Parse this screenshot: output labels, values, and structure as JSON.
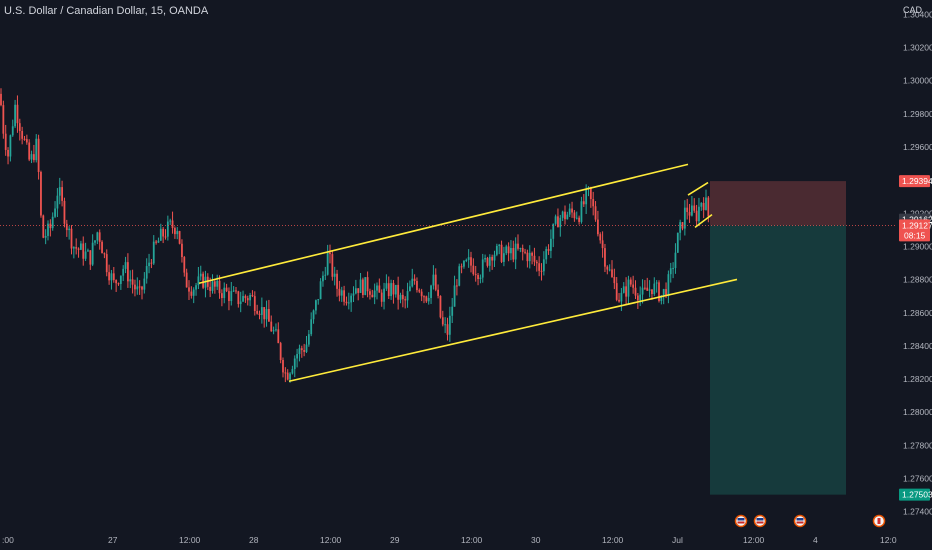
{
  "header": {
    "symbol_title": "U.S. Dollar / Canadian Dollar, 15, OANDA",
    "currency": "CAD"
  },
  "colors": {
    "background": "#131722",
    "up": "#26a69a",
    "down": "#ef5350",
    "channel": "#ffeb3b",
    "stop_zone": "#4a2a31",
    "target_zone": "#163a3c",
    "grid": "#1e222d"
  },
  "chart_data": {
    "type": "candlestick",
    "ylim": [
      1.2732,
      1.3045
    ],
    "y_ticks": [
      "1.30400",
      "1.30200",
      "1.30000",
      "1.29800",
      "1.29600",
      "1.29200",
      "1.29000",
      "1.28800",
      "1.28600",
      "1.28400",
      "1.28200",
      "1.28000",
      "1.27800",
      "1.27600",
      "1.27400"
    ],
    "x_ticks": [
      "12:00",
      "27",
      "12:00",
      "28",
      "12:00",
      "29",
      "12:00",
      "30",
      "12:00",
      "Jul",
      "12:00",
      "4",
      "12:0"
    ],
    "x_first_tick_partial": ":00",
    "series_anchor_points": [
      [
        0,
        1.2992
      ],
      [
        3,
        1.2972
      ],
      [
        8,
        1.2955
      ],
      [
        15,
        1.2985
      ],
      [
        30,
        1.295
      ],
      [
        37,
        1.2962
      ],
      [
        42,
        1.2905
      ],
      [
        50,
        1.291
      ],
      [
        58,
        1.2935
      ],
      [
        68,
        1.291
      ],
      [
        74,
        1.29
      ],
      [
        82,
        1.2897
      ],
      [
        90,
        1.2893
      ],
      [
        98,
        1.291
      ],
      [
        106,
        1.289
      ],
      [
        114,
        1.2877
      ],
      [
        124,
        1.2888
      ],
      [
        132,
        1.2878
      ],
      [
        140,
        1.287
      ],
      [
        150,
        1.2893
      ],
      [
        160,
        1.2905
      ],
      [
        170,
        1.2912
      ],
      [
        178,
        1.2912
      ],
      [
        184,
        1.288
      ],
      [
        192,
        1.2875
      ],
      [
        204,
        1.288
      ],
      [
        214,
        1.2875
      ],
      [
        226,
        1.2872
      ],
      [
        238,
        1.2868
      ],
      [
        250,
        1.287
      ],
      [
        264,
        1.286
      ],
      [
        276,
        1.2845
      ],
      [
        286,
        1.2822
      ],
      [
        296,
        1.2835
      ],
      [
        306,
        1.284
      ],
      [
        314,
        1.286
      ],
      [
        322,
        1.288
      ],
      [
        328,
        1.2895
      ],
      [
        336,
        1.2876
      ],
      [
        346,
        1.287
      ],
      [
        356,
        1.2876
      ],
      [
        368,
        1.2876
      ],
      [
        380,
        1.287
      ],
      [
        392,
        1.2875
      ],
      [
        404,
        1.2865
      ],
      [
        414,
        1.288
      ],
      [
        426,
        1.287
      ],
      [
        434,
        1.288
      ],
      [
        442,
        1.2852
      ],
      [
        448,
        1.2848
      ],
      [
        456,
        1.288
      ],
      [
        468,
        1.289
      ],
      [
        480,
        1.2885
      ],
      [
        492,
        1.2897
      ],
      [
        504,
        1.2895
      ],
      [
        516,
        1.2897
      ],
      [
        528,
        1.2895
      ],
      [
        540,
        1.2887
      ],
      [
        548,
        1.29
      ],
      [
        558,
        1.2917
      ],
      [
        570,
        1.292
      ],
      [
        580,
        1.292
      ],
      [
        588,
        1.2932
      ],
      [
        596,
        1.2917
      ],
      [
        604,
        1.2895
      ],
      [
        612,
        1.288
      ],
      [
        620,
        1.2868
      ],
      [
        630,
        1.2878
      ],
      [
        642,
        1.287
      ],
      [
        652,
        1.2876
      ],
      [
        662,
        1.287
      ],
      [
        670,
        1.288
      ],
      [
        678,
        1.2905
      ],
      [
        686,
        1.2923
      ],
      [
        696,
        1.2918
      ],
      [
        702,
        1.2929
      ],
      [
        706,
        1.2925
      ],
      [
        710,
        1.2914
      ]
    ],
    "channel": {
      "upper": [
        [
          199,
          1.28778
        ],
        [
          688,
          1.29495
        ]
      ],
      "lower": [
        [
          289,
          1.28187
        ],
        [
          737,
          1.28801
        ]
      ],
      "small_upper": [
        [
          688,
          1.2931
        ],
        [
          708,
          1.29385
        ]
      ],
      "small_lower": [
        [
          695,
          1.29115
        ],
        [
          712,
          1.29192
        ]
      ]
    },
    "position": {
      "stop_price": 1.29394,
      "entry_price": 1.29127,
      "target_price": 1.27503,
      "x_start": 710,
      "x_end": 846
    },
    "price_tags": [
      {
        "label": "1.29394",
        "value": 1.29394,
        "color": "#ef5350"
      },
      {
        "label": "1.29162",
        "value": 1.29162,
        "color": "#363a45"
      },
      {
        "label": "1.29127",
        "value": 1.29127,
        "color": "#ef5350",
        "sub": "08:15"
      },
      {
        "label": "1.27503",
        "value": 1.27503,
        "color": "#089981"
      }
    ],
    "event_markers": [
      {
        "x": 741,
        "icon": "us-flag-icon"
      },
      {
        "x": 760,
        "icon": "us-flag-icon"
      },
      {
        "x": 800,
        "icon": "us-flag-icon"
      },
      {
        "x": 879,
        "icon": "ca-flag-icon"
      }
    ]
  }
}
